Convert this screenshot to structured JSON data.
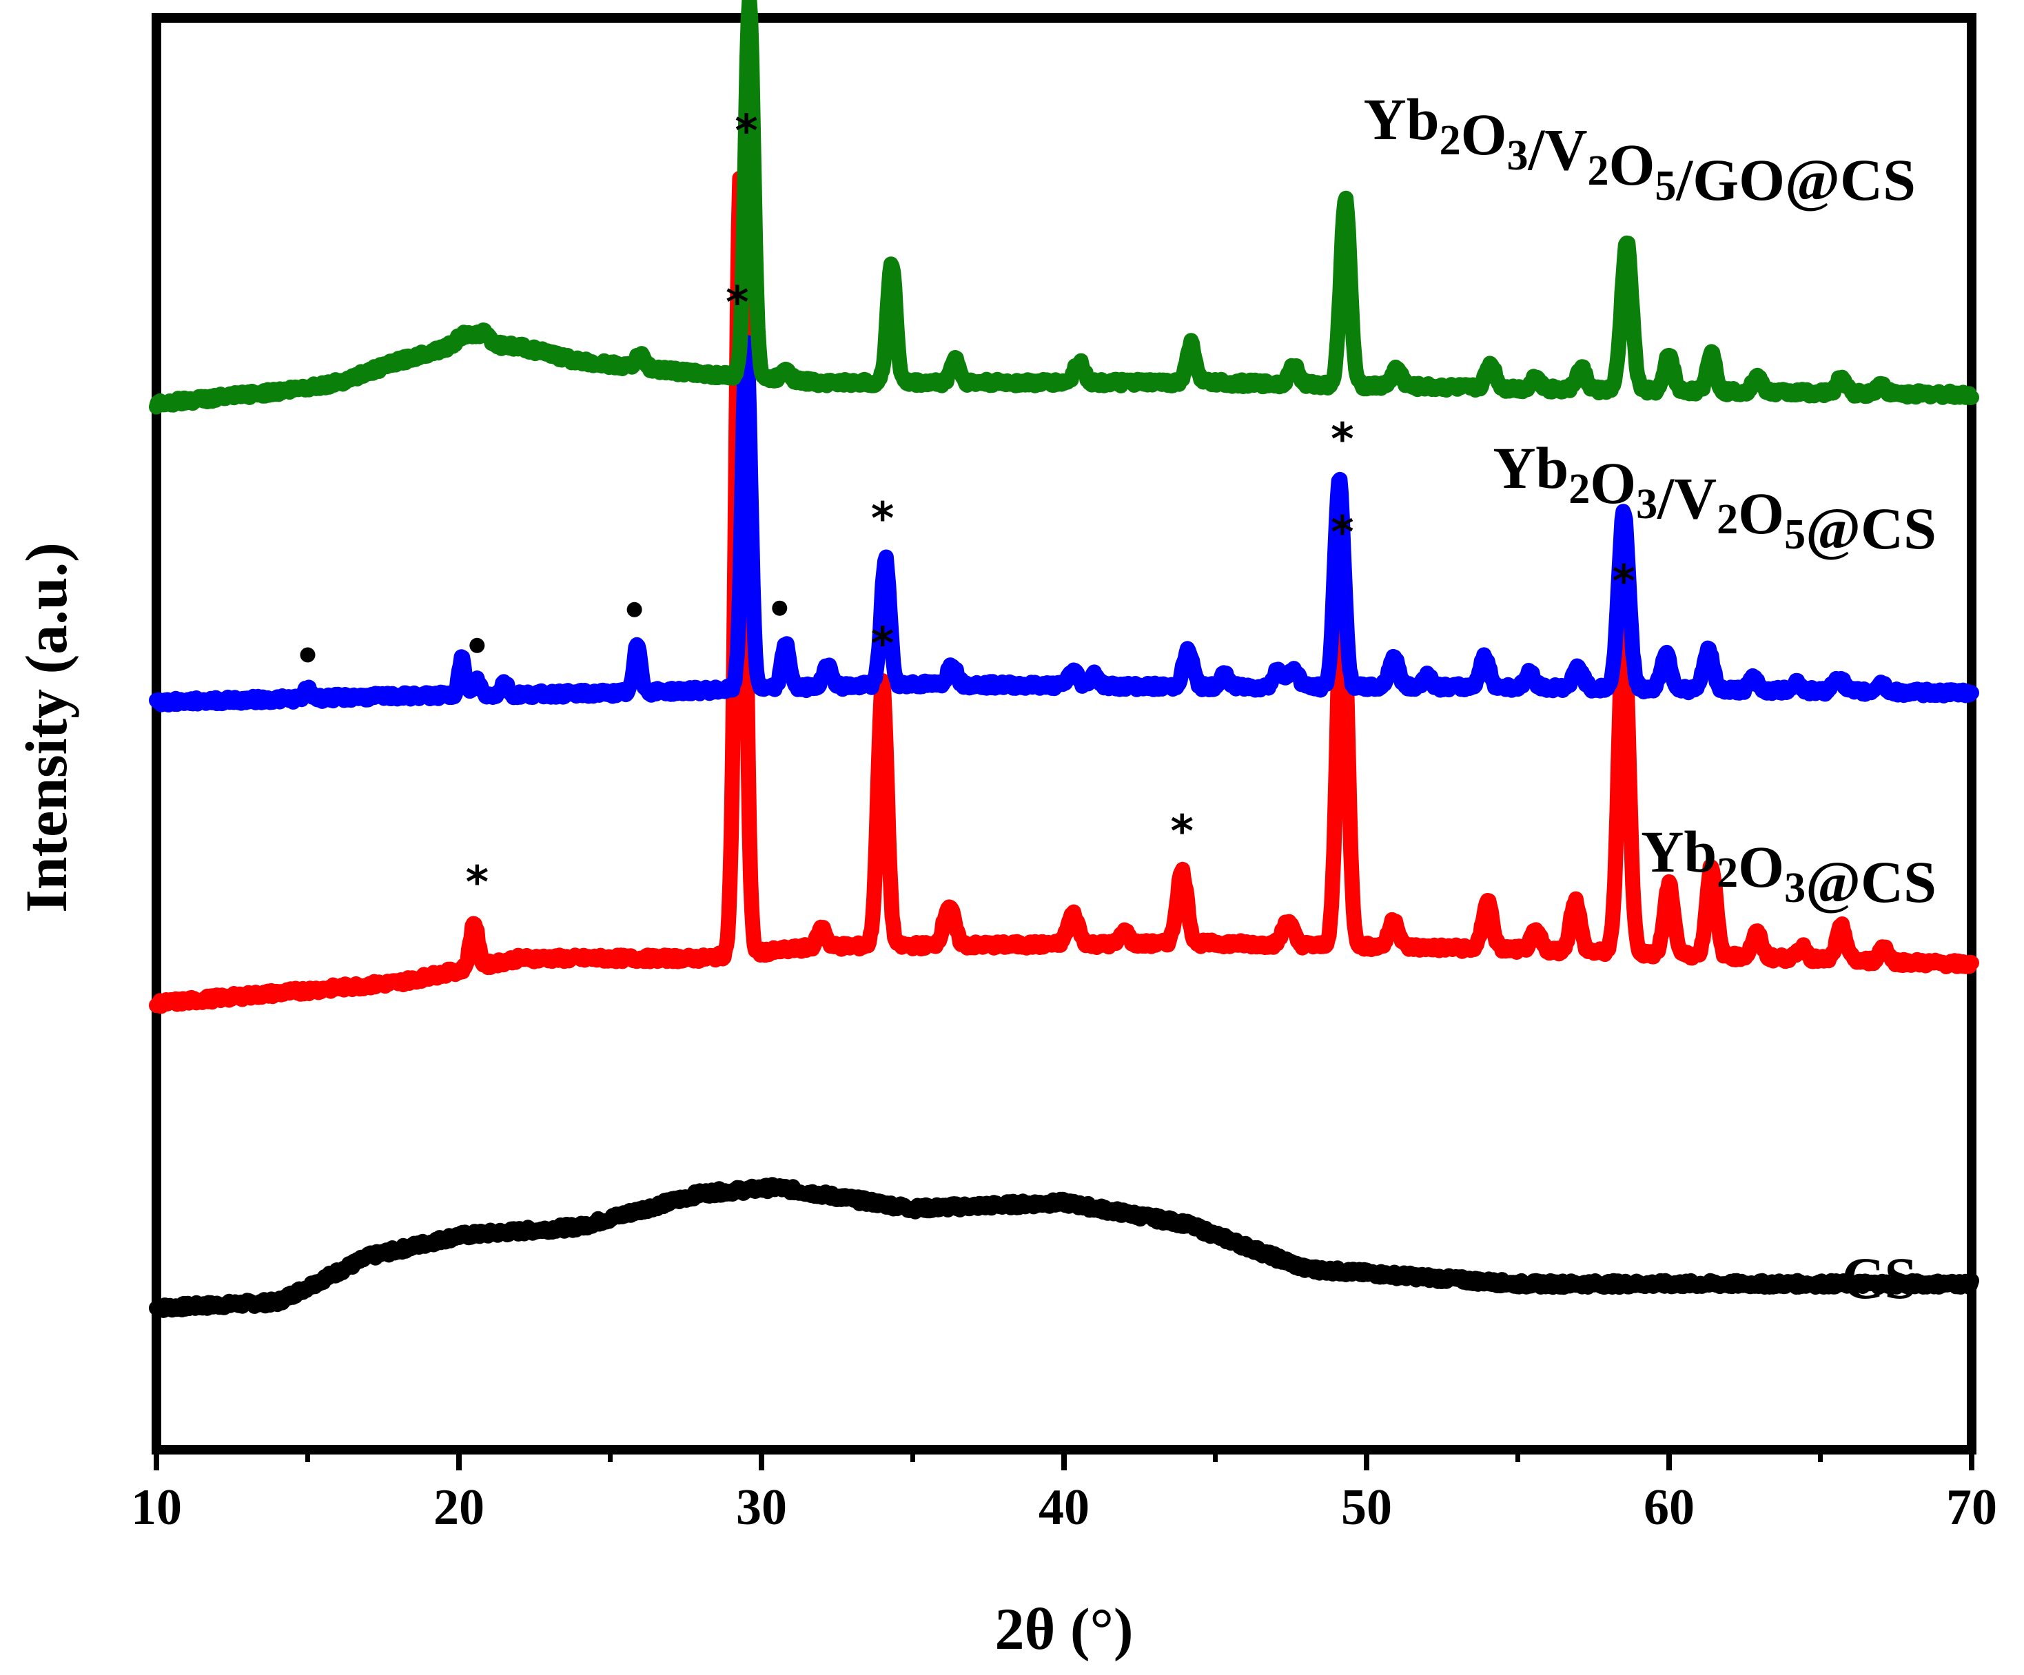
{
  "chart_data": {
    "type": "line",
    "title": "",
    "xlabel": "2θ (°)",
    "ylabel": "Intensity (a.u.)",
    "xlim": [
      10,
      70
    ],
    "xticks": [
      10,
      20,
      30,
      40,
      50,
      60,
      70
    ],
    "yticks_shown": false,
    "grid": false,
    "legend": "inline labels above each trace",
    "colors": {
      "CS": "#000000",
      "Yb2O3@CS": "#ff0000",
      "Yb2O3/V2O5@CS": "#0000ff",
      "Yb2O3/V2O5/GO@CS": "#0a800a"
    },
    "series": [
      {
        "name": "CS",
        "label_parts": [
          {
            "t": "CS",
            "sub": false
          }
        ],
        "color": "#000000",
        "baseline": 0.2,
        "background": [
          [
            10,
            0.2
          ],
          [
            14,
            0.4
          ],
          [
            17,
            1.9
          ],
          [
            20,
            2.6
          ],
          [
            24,
            2.9
          ],
          [
            28,
            4.0
          ],
          [
            30.5,
            4.2
          ],
          [
            35,
            3.5
          ],
          [
            40,
            3.7
          ],
          [
            44,
            3.0
          ],
          [
            48,
            1.5
          ],
          [
            55,
            1.0
          ],
          [
            70,
            1.0
          ]
        ],
        "peaks": [],
        "markers_star": [],
        "markers_dot": []
      },
      {
        "name": "Yb2O3@CS",
        "label_parts": [
          {
            "t": "Yb",
            "sub": false
          },
          {
            "t": "2",
            "sub": true
          },
          {
            "t": "O",
            "sub": false
          },
          {
            "t": "3",
            "sub": true
          },
          {
            "t": "@CS",
            "sub": false
          }
        ],
        "color": "#ff0000",
        "baseline": 10.3,
        "background": [
          [
            10,
            10.3
          ],
          [
            18,
            11.0
          ],
          [
            22,
            11.8
          ],
          [
            28,
            11.8
          ],
          [
            32,
            12.2
          ],
          [
            45,
            12.3
          ],
          [
            55,
            12.1
          ],
          [
            70,
            11.6
          ]
        ],
        "peaks": [
          [
            20.5,
            1.5,
            0.18
          ],
          [
            29.3,
            26.0,
            0.22
          ],
          [
            32.0,
            0.6,
            0.2
          ],
          [
            34.0,
            8.7,
            0.22
          ],
          [
            36.2,
            1.3,
            0.25
          ],
          [
            40.3,
            1.0,
            0.25
          ],
          [
            42.0,
            0.4,
            0.2
          ],
          [
            43.9,
            2.4,
            0.24
          ],
          [
            47.4,
            0.8,
            0.24
          ],
          [
            49.2,
            12.4,
            0.24
          ],
          [
            50.9,
            0.9,
            0.22
          ],
          [
            54.0,
            1.6,
            0.22
          ],
          [
            55.6,
            0.6,
            0.22
          ],
          [
            56.9,
            1.7,
            0.22
          ],
          [
            58.5,
            11.0,
            0.24
          ],
          [
            60.0,
            2.3,
            0.22
          ],
          [
            61.4,
            3.0,
            0.22
          ],
          [
            62.9,
            0.8,
            0.22
          ],
          [
            64.4,
            0.4,
            0.2
          ],
          [
            65.7,
            1.1,
            0.22
          ],
          [
            67.1,
            0.5,
            0.2
          ]
        ],
        "markers_star": [
          20.6,
          29.5,
          34.0,
          43.9,
          49.2,
          58.5
        ],
        "markers_dot": []
      },
      {
        "name": "Yb2O3/V2O5@CS",
        "label_parts": [
          {
            "t": "Yb",
            "sub": false
          },
          {
            "t": "2",
            "sub": true
          },
          {
            "t": "O",
            "sub": false
          },
          {
            "t": "3",
            "sub": true
          },
          {
            "t": "/V",
            "sub": false
          },
          {
            "t": "2",
            "sub": true
          },
          {
            "t": "O",
            "sub": false
          },
          {
            "t": "5",
            "sub": true
          },
          {
            "t": "@CS",
            "sub": false
          }
        ],
        "color": "#0000ff",
        "baseline": 20.3,
        "background": [
          [
            10,
            20.3
          ],
          [
            18,
            20.5
          ],
          [
            25,
            20.6
          ],
          [
            35,
            20.9
          ],
          [
            45,
            20.8
          ],
          [
            55,
            20.8
          ],
          [
            70,
            20.6
          ]
        ],
        "peaks": [
          [
            15.0,
            0.3,
            0.15
          ],
          [
            20.1,
            1.2,
            0.15
          ],
          [
            20.6,
            0.5,
            0.15
          ],
          [
            21.5,
            0.4,
            0.15
          ],
          [
            25.9,
            1.6,
            0.16
          ],
          [
            29.5,
            11.5,
            0.2
          ],
          [
            30.8,
            1.5,
            0.18
          ],
          [
            32.2,
            0.7,
            0.2
          ],
          [
            34.1,
            4.2,
            0.2
          ],
          [
            36.3,
            0.7,
            0.2
          ],
          [
            40.3,
            0.5,
            0.22
          ],
          [
            41.0,
            0.4,
            0.2
          ],
          [
            44.1,
            1.2,
            0.22
          ],
          [
            45.3,
            0.4,
            0.2
          ],
          [
            47.1,
            0.6,
            0.22
          ],
          [
            47.6,
            0.6,
            0.22
          ],
          [
            49.1,
            6.9,
            0.22
          ],
          [
            50.9,
            1.0,
            0.22
          ],
          [
            52.0,
            0.4,
            0.2
          ],
          [
            53.9,
            1.0,
            0.22
          ],
          [
            55.4,
            0.5,
            0.2
          ],
          [
            57.0,
            0.7,
            0.22
          ],
          [
            58.5,
            5.9,
            0.24
          ],
          [
            59.9,
            1.2,
            0.22
          ],
          [
            61.3,
            1.3,
            0.22
          ],
          [
            62.8,
            0.4,
            0.2
          ],
          [
            64.2,
            0.3,
            0.2
          ],
          [
            65.6,
            0.5,
            0.22
          ],
          [
            67.0,
            0.3,
            0.2
          ]
        ],
        "markers_star": [
          29.2,
          34.0,
          49.2
        ],
        "markers_dot": [
          15.0,
          20.6,
          25.8,
          30.6
        ]
      },
      {
        "name": "Yb2O3/V2O5/GO@CS",
        "label_parts": [
          {
            "t": "Yb",
            "sub": false
          },
          {
            "t": "2",
            "sub": true
          },
          {
            "t": "O",
            "sub": false
          },
          {
            "t": "3",
            "sub": true
          },
          {
            "t": "/V",
            "sub": false
          },
          {
            "t": "2",
            "sub": true
          },
          {
            "t": "O",
            "sub": false
          },
          {
            "t": "5",
            "sub": true
          },
          {
            "t": "/GO@CS",
            "sub": false
          }
        ],
        "color": "#0a800a",
        "baseline": 30.2,
        "background": [
          [
            10,
            30.2
          ],
          [
            14,
            30.6
          ],
          [
            16,
            30.9
          ],
          [
            18,
            31.6
          ],
          [
            20,
            32.2
          ],
          [
            22,
            32.1
          ],
          [
            24,
            31.6
          ],
          [
            28,
            31.2
          ],
          [
            32,
            30.9
          ],
          [
            45,
            30.9
          ],
          [
            55,
            30.7
          ],
          [
            70,
            30.5
          ]
        ],
        "peaks": [
          [
            20.2,
            0.3,
            0.3
          ],
          [
            20.8,
            0.4,
            0.3
          ],
          [
            26.0,
            0.4,
            0.2
          ],
          [
            29.6,
            12.4,
            0.2
          ],
          [
            30.8,
            0.4,
            0.2
          ],
          [
            34.3,
            4.0,
            0.2
          ],
          [
            36.4,
            0.8,
            0.2
          ],
          [
            40.5,
            0.7,
            0.22
          ],
          [
            44.2,
            1.3,
            0.2
          ],
          [
            47.6,
            0.6,
            0.22
          ],
          [
            49.3,
            6.2,
            0.22
          ],
          [
            51.0,
            0.6,
            0.22
          ],
          [
            54.1,
            0.8,
            0.22
          ],
          [
            55.6,
            0.4,
            0.2
          ],
          [
            57.1,
            0.7,
            0.22
          ],
          [
            58.6,
            4.9,
            0.24
          ],
          [
            60.0,
            1.2,
            0.2
          ],
          [
            61.4,
            1.3,
            0.2
          ],
          [
            62.9,
            0.5,
            0.2
          ],
          [
            65.7,
            0.5,
            0.2
          ],
          [
            67.0,
            0.3,
            0.2
          ]
        ],
        "markers_star": [],
        "markers_dot": []
      }
    ]
  }
}
